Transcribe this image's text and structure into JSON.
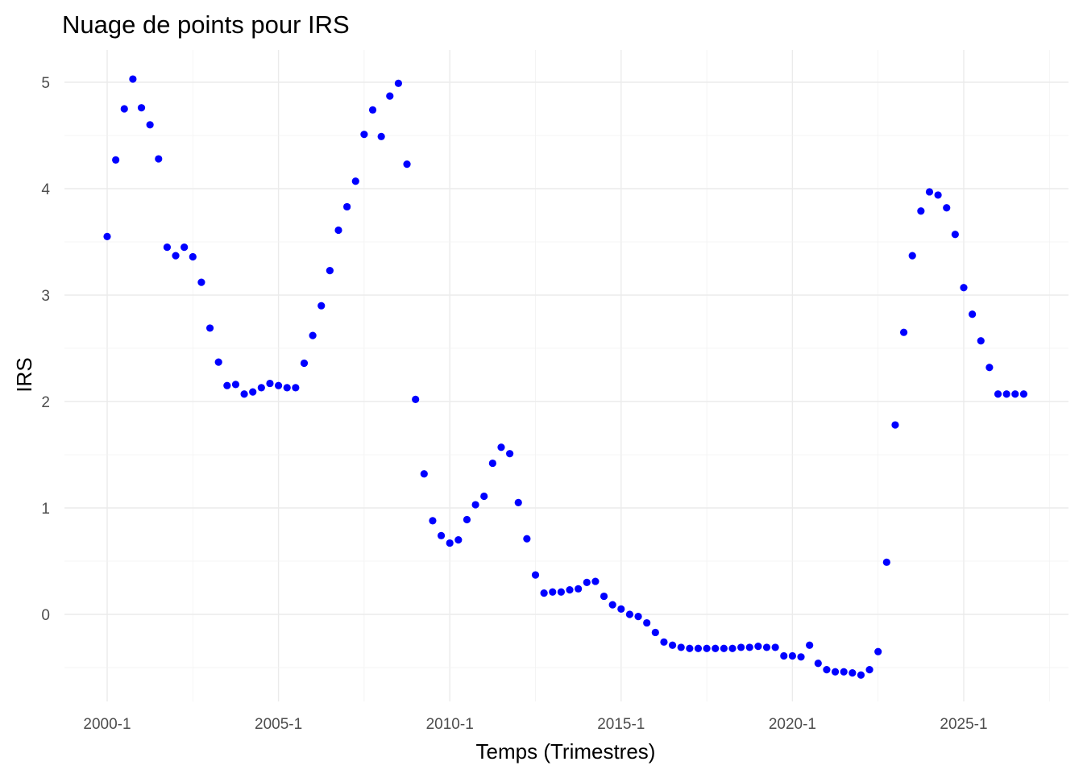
{
  "chart_data": {
    "type": "scatter",
    "title": "Nuage de points pour IRS",
    "xlabel": "Temps (Trimestres)",
    "ylabel": "IRS",
    "x_start": "2000-1",
    "x_end": "2026-4",
    "x_ticks": [
      "2000-1",
      "2005-1",
      "2010-1",
      "2015-1",
      "2020-1",
      "2025-1"
    ],
    "y_ticks": [
      0,
      1,
      2,
      3,
      4,
      5
    ],
    "ylim": [
      -0.8,
      5.3
    ],
    "grid": true,
    "point_color": "#0000ff",
    "series": [
      {
        "x": [
          "2000-1",
          "2000-2",
          "2000-3",
          "2000-4",
          "2001-1",
          "2001-2",
          "2001-3",
          "2001-4",
          "2002-1",
          "2002-2",
          "2002-3",
          "2002-4",
          "2003-1",
          "2003-2",
          "2003-3",
          "2003-4",
          "2004-1",
          "2004-2",
          "2004-3",
          "2004-4",
          "2005-1",
          "2005-2",
          "2005-3",
          "2005-4",
          "2006-1",
          "2006-2",
          "2006-3",
          "2006-4",
          "2007-1",
          "2007-2",
          "2007-3",
          "2007-4",
          "2008-1",
          "2008-2",
          "2008-3",
          "2008-4",
          "2009-1",
          "2009-2",
          "2009-3",
          "2009-4",
          "2010-1",
          "2010-2",
          "2010-3",
          "2010-4",
          "2011-1",
          "2011-2",
          "2011-3",
          "2011-4",
          "2012-1",
          "2012-2",
          "2012-3",
          "2012-4",
          "2013-1",
          "2013-2",
          "2013-3",
          "2013-4",
          "2014-1",
          "2014-2",
          "2014-3",
          "2014-4",
          "2015-1",
          "2015-2",
          "2015-3",
          "2015-4",
          "2016-1",
          "2016-2",
          "2016-3",
          "2016-4",
          "2017-1",
          "2017-2",
          "2017-3",
          "2017-4",
          "2018-1",
          "2018-2",
          "2018-3",
          "2018-4",
          "2019-1",
          "2019-2",
          "2019-3",
          "2019-4",
          "2020-1",
          "2020-2",
          "2020-3",
          "2020-4",
          "2021-1",
          "2021-2",
          "2021-3",
          "2021-4",
          "2022-1",
          "2022-2",
          "2022-3",
          "2022-4",
          "2023-1",
          "2023-2",
          "2023-3",
          "2023-4",
          "2024-1",
          "2024-2",
          "2024-3",
          "2024-4",
          "2025-1",
          "2025-2",
          "2025-3",
          "2025-4",
          "2026-1",
          "2026-2",
          "2026-3",
          "2026-4"
        ],
        "y": [
          3.55,
          4.27,
          4.75,
          5.03,
          4.76,
          4.6,
          4.28,
          3.45,
          3.37,
          3.45,
          3.36,
          3.12,
          2.69,
          2.37,
          2.15,
          2.16,
          2.07,
          2.09,
          2.13,
          2.17,
          2.15,
          2.13,
          2.13,
          2.36,
          2.62,
          2.9,
          3.23,
          3.61,
          3.83,
          4.07,
          4.51,
          4.74,
          4.49,
          4.87,
          4.99,
          4.23,
          2.02,
          1.32,
          0.88,
          0.74,
          0.67,
          0.7,
          0.89,
          1.03,
          1.11,
          1.42,
          1.57,
          1.51,
          1.05,
          0.71,
          0.37,
          0.2,
          0.21,
          0.21,
          0.23,
          0.24,
          0.3,
          0.31,
          0.17,
          0.09,
          0.05,
          0.0,
          -0.02,
          -0.08,
          -0.17,
          -0.26,
          -0.29,
          -0.31,
          -0.32,
          -0.32,
          -0.32,
          -0.32,
          -0.32,
          -0.32,
          -0.31,
          -0.31,
          -0.3,
          -0.31,
          -0.31,
          -0.39,
          -0.39,
          -0.4,
          -0.29,
          -0.46,
          -0.52,
          -0.54,
          -0.54,
          -0.55,
          -0.57,
          -0.52,
          -0.35,
          0.49,
          1.78,
          2.65,
          3.37,
          3.79,
          3.97,
          3.94,
          3.82,
          3.57,
          3.07,
          2.82,
          2.57,
          2.32,
          2.07,
          2.07,
          2.07,
          2.07
        ]
      }
    ]
  }
}
